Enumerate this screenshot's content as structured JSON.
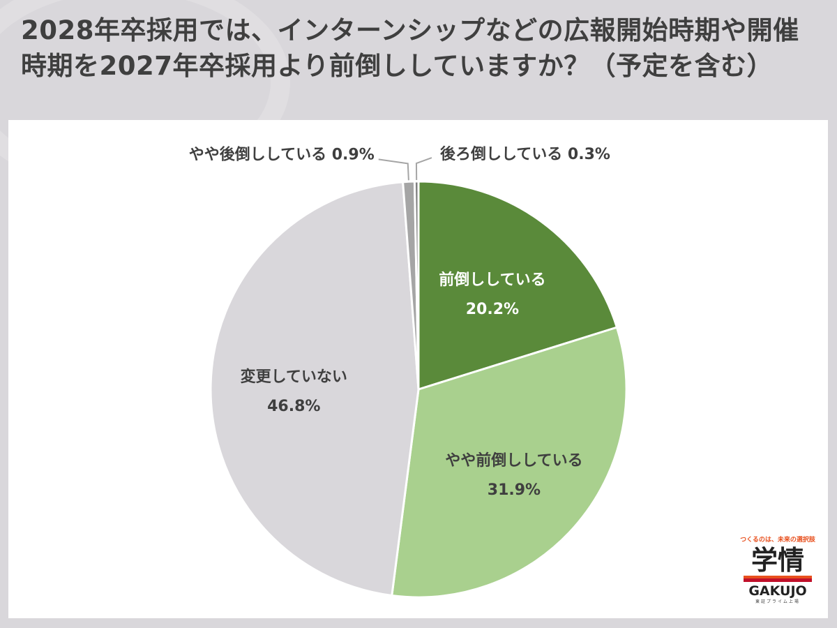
{
  "title": "2028年卒採用では、インターンシップなどの広報開始時期や開催時期を2027年卒採用より前倒ししていますか？（予定を含む）",
  "chart_data": {
    "type": "pie",
    "start": "12 o'clock",
    "direction": "clockwise",
    "slices": [
      {
        "label": "前倒ししている",
        "value": 20.2,
        "value_label": "20.2%",
        "color": "#5a8a3a",
        "text_color": "#ffffff",
        "label_position": "inside"
      },
      {
        "label": "やや前倒ししている",
        "value": 31.9,
        "value_label": "31.9%",
        "color": "#a9d08e",
        "text_color": "#3f3f3f",
        "label_position": "inside"
      },
      {
        "label": "変更していない",
        "value": 46.8,
        "value_label": "46.8%",
        "color": "#d9d7db",
        "text_color": "#3f3f3f",
        "label_position": "inside"
      },
      {
        "label": "やや後倒ししている",
        "value": 0.9,
        "value_label": "0.9%",
        "color": "#a5a5a5",
        "text_color": "#3f3f3f",
        "label_position": "outside-left"
      },
      {
        "label": "後ろ倒ししている",
        "value": 0.3,
        "value_label": "0.3%",
        "color": "#7f7f7f",
        "text_color": "#3f3f3f",
        "label_position": "outside-right"
      }
    ]
  },
  "logo": {
    "tagline": "つくるのは、未来の選択肢",
    "kanji": "学情",
    "name": "GAKUJO",
    "sub": "東証プライム上場"
  }
}
